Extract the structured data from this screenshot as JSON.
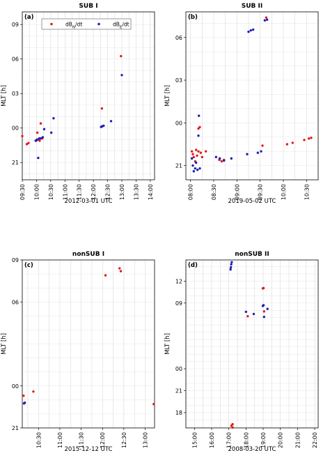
{
  "chart_data": [
    {
      "type": "scatter",
      "title": "SUB I",
      "panel_label": "(a)",
      "xlabel": "2012-03-01 UTC",
      "ylabel": "MLT [h]",
      "x_ticks": [
        "09:30",
        "10:00",
        "10:30",
        "11:00",
        "11:30",
        "12:00",
        "12:30",
        "13:00",
        "13:30",
        "14:00"
      ],
      "xlim": [
        9.5,
        14.15
      ],
      "y_ticks": [
        "21",
        "00",
        "03",
        "06",
        "09"
      ],
      "ylim": [
        19.5,
        34.1
      ],
      "grid": true,
      "legend": {
        "placement": "top-center",
        "entries": [
          "dB_N/dt",
          "dB_E/dt"
        ]
      },
      "series": [
        {
          "name": "dB_N/dt",
          "color": "#e41a1c",
          "points": [
            [
              9.5,
              23.3
            ],
            [
              9.66,
              22.6
            ],
            [
              9.72,
              22.7
            ],
            [
              9.99,
              22.9
            ],
            [
              10.03,
              23.6
            ],
            [
              10.05,
              23.0
            ],
            [
              10.11,
              22.9
            ],
            [
              10.15,
              24.4
            ],
            [
              10.2,
              23.1
            ],
            [
              12.3,
              25.7
            ],
            [
              12.97,
              30.25
            ]
          ]
        },
        {
          "name": "dB_E/dt",
          "color": "#1f1fb4",
          "points": [
            [
              9.97,
              22.9
            ],
            [
              10.02,
              23.0
            ],
            [
              10.06,
              21.4
            ],
            [
              10.1,
              23.1
            ],
            [
              10.15,
              23.1
            ],
            [
              10.22,
              23.2
            ],
            [
              10.27,
              23.9
            ],
            [
              10.52,
              23.6
            ],
            [
              10.6,
              24.85
            ],
            [
              12.27,
              24.1
            ],
            [
              12.31,
              24.15
            ],
            [
              12.36,
              24.2
            ],
            [
              12.62,
              24.6
            ],
            [
              13.0,
              28.6
            ]
          ]
        }
      ]
    },
    {
      "type": "scatter",
      "title": "SUB II",
      "panel_label": "(b)",
      "xlabel": "2019-05-02 UTC",
      "ylabel": "MLT [h]",
      "x_ticks": [
        "08:00",
        "08:30",
        "09:00",
        "09:30",
        "10:00",
        "10:30"
      ],
      "xlim": [
        7.9,
        10.75
      ],
      "y_ticks": [
        "21",
        "00",
        "03",
        "06"
      ],
      "ylim": [
        20,
        31.8
      ],
      "grid": true,
      "series": [
        {
          "name": "dB_N/dt",
          "color": "#e41a1c",
          "points": [
            [
              8.03,
              22.0
            ],
            [
              8.05,
              21.8
            ],
            [
              8.07,
              21.6
            ],
            [
              8.1,
              21.3
            ],
            [
              8.12,
              22.1
            ],
            [
              8.14,
              21.7
            ],
            [
              8.17,
              23.6
            ],
            [
              8.17,
              22.0
            ],
            [
              8.2,
              23.7
            ],
            [
              8.22,
              21.9
            ],
            [
              8.25,
              21.6
            ],
            [
              8.33,
              22.0
            ],
            [
              8.62,
              21.4
            ],
            [
              8.67,
              21.3
            ],
            [
              8.72,
              21.4
            ],
            [
              9.55,
              22.4
            ],
            [
              9.63,
              31.4
            ],
            [
              10.08,
              22.5
            ],
            [
              10.2,
              22.6
            ],
            [
              10.45,
              22.8
            ],
            [
              10.55,
              22.9
            ],
            [
              10.6,
              22.95
            ]
          ]
        },
        {
          "name": "dB_E/dt",
          "color": "#1f1fb4",
          "points": [
            [
              8.03,
              21.5
            ],
            [
              8.05,
              21.0
            ],
            [
              8.07,
              20.6
            ],
            [
              8.1,
              20.8
            ],
            [
              8.12,
              21.2
            ],
            [
              8.15,
              20.7
            ],
            [
              8.17,
              23.1
            ],
            [
              8.18,
              24.5
            ],
            [
              8.2,
              20.8
            ],
            [
              8.55,
              21.6
            ],
            [
              8.63,
              21.5
            ],
            [
              8.72,
              21.35
            ],
            [
              8.88,
              21.5
            ],
            [
              9.22,
              21.8
            ],
            [
              9.25,
              30.4
            ],
            [
              9.3,
              30.5
            ],
            [
              9.35,
              30.55
            ],
            [
              9.45,
              21.9
            ],
            [
              9.52,
              22.0
            ],
            [
              9.6,
              31.2
            ],
            [
              9.65,
              31.25
            ]
          ]
        }
      ]
    },
    {
      "type": "scatter",
      "title": "nonSUB I",
      "panel_label": "(c)",
      "xlabel": "2015-12-12 UTC",
      "ylabel": "MLT [h]",
      "x_ticks": [
        "10:30",
        "11:00",
        "11:30",
        "12:00",
        "12:30",
        "13:00"
      ],
      "xlim": [
        10.12,
        13.22
      ],
      "y_ticks": [
        "21",
        "00",
        "06",
        "09"
      ],
      "ylim": [
        21,
        33
      ],
      "grid": true,
      "series": [
        {
          "name": "dB_N/dt",
          "color": "#e41a1c",
          "points": [
            [
              10.15,
              23.3
            ],
            [
              10.38,
              23.6
            ],
            [
              12.07,
              31.9
            ],
            [
              12.4,
              32.4
            ],
            [
              12.43,
              32.2
            ],
            [
              13.2,
              22.7
            ]
          ]
        },
        {
          "name": "dB_E/dt",
          "color": "#1f1fb4",
          "points": [
            [
              10.16,
              22.75
            ],
            [
              10.18,
              22.8
            ]
          ]
        }
      ]
    },
    {
      "type": "scatter",
      "title": "nonSUB II",
      "panel_label": "(d)",
      "xlabel": "2008-03-20 UTC",
      "ylabel": "MLT [h]",
      "x_ticks": [
        "15:00",
        "16:00",
        "17:00",
        "18:00",
        "19:00",
        "20:00",
        "21:00",
        "22:00"
      ],
      "xlim": [
        14.5,
        22.2
      ],
      "y_ticks": [
        "18",
        "21",
        "00",
        "09",
        "12"
      ],
      "ylim": [
        15.9,
        38.9
      ],
      "grid": true,
      "series": [
        {
          "name": "dB_N/dt",
          "color": "#e41a1c",
          "points": [
            [
              17.15,
              16.2
            ],
            [
              17.22,
              16.4
            ],
            [
              17.22,
              15.95
            ],
            [
              18.1,
              31.2
            ],
            [
              18.98,
              35.0
            ],
            [
              19.02,
              35.05
            ],
            [
              19.05,
              31.85
            ]
          ]
        },
        {
          "name": "dB_E/dt",
          "color": "#1f1fb4",
          "points": [
            [
              17.1,
              37.6
            ],
            [
              17.12,
              37.9
            ],
            [
              17.14,
              38.3
            ],
            [
              17.17,
              38.6
            ],
            [
              18.0,
              31.8
            ],
            [
              18.45,
              31.5
            ],
            [
              18.98,
              32.6
            ],
            [
              19.02,
              32.7
            ],
            [
              19.05,
              31.1
            ],
            [
              19.25,
              32.2
            ]
          ]
        }
      ]
    }
  ]
}
